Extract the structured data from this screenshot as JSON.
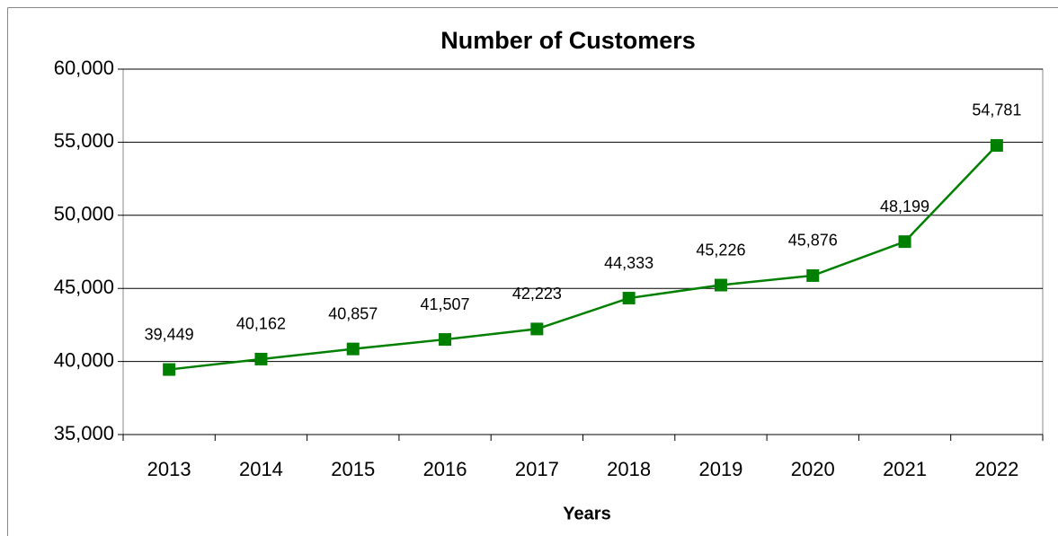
{
  "chart_data": {
    "type": "line",
    "title": "Number of Customers",
    "x_label": "Years",
    "categories": [
      "2013",
      "2014",
      "2015",
      "2016",
      "2017",
      "2018",
      "2019",
      "2020",
      "2021",
      "2022"
    ],
    "series": [
      {
        "name": "Customers",
        "color": "#008000",
        "values": [
          39449,
          40162,
          40857,
          41507,
          42223,
          44333,
          45226,
          45876,
          48199,
          54781
        ],
        "value_labels": [
          "39,449",
          "40,162",
          "40,857",
          "41,507",
          "42,223",
          "44,333",
          "45,226",
          "45,876",
          "48,199",
          "54,781"
        ]
      }
    ],
    "ylim": [
      35000,
      60000
    ],
    "yticks": [
      {
        "value": 35000,
        "label": "35,000"
      },
      {
        "value": 40000,
        "label": "40,000"
      },
      {
        "value": 45000,
        "label": "45,000"
      },
      {
        "value": 50000,
        "label": "50,000"
      },
      {
        "value": 55000,
        "label": "55,000"
      },
      {
        "value": 60000,
        "label": "60,000"
      }
    ],
    "grid": true
  }
}
